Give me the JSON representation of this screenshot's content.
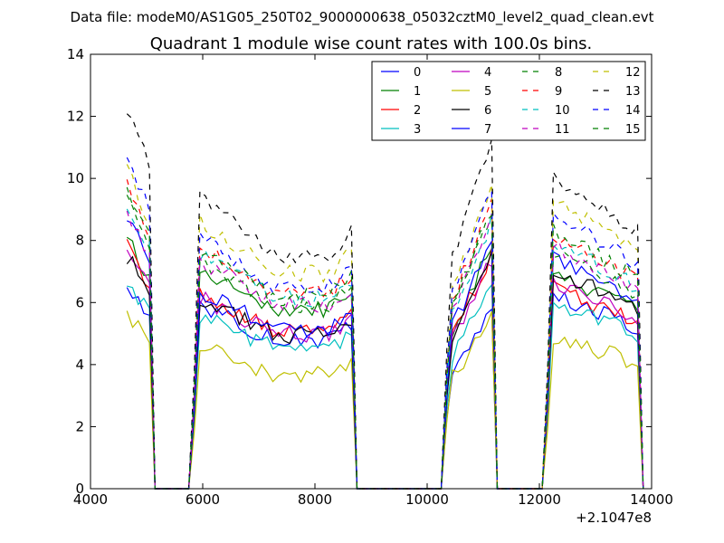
{
  "chart_data": {
    "type": "line",
    "suptitle": "Data file: modeM0/AS1G05_250T02_9000000638_05032cztM0_level2_quad_clean.evt",
    "title": "Quadrant 1 module wise count rates with 100.0s bins.",
    "xlabel": "",
    "ylabel": "",
    "x_offset_label": "+2.1047e8",
    "xlim": [
      4000,
      14000
    ],
    "ylim": [
      0,
      14
    ],
    "xticks": [
      "4000",
      "6000",
      "8000",
      "10000",
      "12000",
      "14000"
    ],
    "yticks": [
      "0",
      "2",
      "4",
      "6",
      "8",
      "10",
      "12",
      "14"
    ],
    "legend_position": "top-right",
    "segments": [
      {
        "start": 4650,
        "end": 5050
      },
      {
        "start": 5950,
        "end": 8650
      },
      {
        "start": 10450,
        "end": 11150
      },
      {
        "start": 12250,
        "end": 13750
      }
    ],
    "series": [
      {
        "name": "0",
        "color": "#0000ff",
        "style": "solid",
        "levels": [
          5.9,
          5.3,
          5.0,
          5.6
        ]
      },
      {
        "name": "1",
        "color": "#008000",
        "style": "solid",
        "levels": [
          7.2,
          6.4,
          6.8,
          6.2
        ]
      },
      {
        "name": "2",
        "color": "#ff0000",
        "style": "solid",
        "levels": [
          7.0,
          5.6,
          6.6,
          5.8
        ]
      },
      {
        "name": "3",
        "color": "#00bfbf",
        "style": "solid",
        "levels": [
          6.0,
          5.0,
          5.7,
          5.4
        ]
      },
      {
        "name": "4",
        "color": "#bf00bf",
        "style": "solid",
        "levels": [
          6.9,
          5.5,
          6.4,
          6.0
        ]
      },
      {
        "name": "5",
        "color": "#bfbf00",
        "style": "solid",
        "levels": [
          5.0,
          4.1,
          4.8,
          4.4
        ]
      },
      {
        "name": "6",
        "color": "#000000",
        "style": "solid",
        "levels": [
          6.7,
          5.5,
          6.5,
          6.3
        ]
      },
      {
        "name": "7",
        "color": "#0000ff",
        "style": "solid",
        "levels": [
          7.8,
          5.7,
          6.9,
          6.6
        ]
      },
      {
        "name": "8",
        "color": "#008000",
        "style": "dashed",
        "levels": [
          8.4,
          6.6,
          7.8,
          6.8
        ]
      },
      {
        "name": "9",
        "color": "#ff0000",
        "style": "dashed",
        "levels": [
          8.7,
          7.0,
          8.0,
          7.3
        ]
      },
      {
        "name": "10",
        "color": "#00bfbf",
        "style": "dashed",
        "levels": [
          8.2,
          6.8,
          7.5,
          7.1
        ]
      },
      {
        "name": "11",
        "color": "#bf00bf",
        "style": "dashed",
        "levels": [
          8.0,
          6.6,
          7.6,
          7.0
        ]
      },
      {
        "name": "12",
        "color": "#bfbf00",
        "style": "dashed",
        "levels": [
          9.2,
          7.7,
          8.6,
          8.3
        ]
      },
      {
        "name": "13",
        "color": "#000000",
        "style": "dashed",
        "levels": [
          11.0,
          8.4,
          9.9,
          9.0
        ]
      },
      {
        "name": "14",
        "color": "#0000ff",
        "style": "dashed",
        "levels": [
          9.6,
          7.2,
          8.4,
          7.9
        ]
      },
      {
        "name": "15",
        "color": "#008000",
        "style": "dashed",
        "levels": [
          8.6,
          6.9,
          7.8,
          7.4
        ]
      }
    ]
  }
}
